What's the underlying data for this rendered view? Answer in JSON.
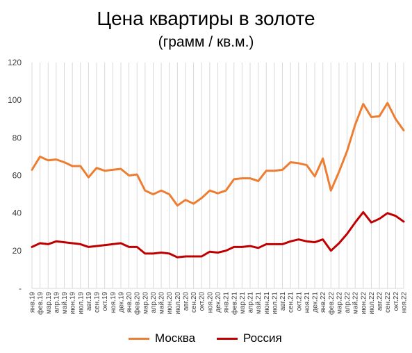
{
  "title": "Цена квартиры в золоте",
  "subtitle": "(грамм / кв.м.)",
  "chart_data": {
    "type": "line",
    "title": "Цена квартиры в золоте",
    "subtitle": "(грамм / кв.м.)",
    "xlabel": "",
    "ylabel": "",
    "ylim": [
      0,
      120
    ],
    "yticks": [
      "-",
      "20",
      "40",
      "60",
      "80",
      "100",
      "120"
    ],
    "grid": "vertical",
    "legend": "bottom",
    "categories": [
      "янв.19",
      "фев.19",
      "мар.19",
      "апр.19",
      "май.19",
      "июн.19",
      "июл.19",
      "авг.19",
      "сен.19",
      "окт.19",
      "ноя.19",
      "дек.19",
      "янв.20",
      "фев.20",
      "мар.20",
      "апр.20",
      "май.20",
      "июн.20",
      "июл.20",
      "авг.20",
      "сен.20",
      "окт.20",
      "ноя.20",
      "дек.20",
      "янв.21",
      "фев.21",
      "мар.21",
      "апр.21",
      "май.21",
      "июн.21",
      "июл.21",
      "авг.21",
      "сен.21",
      "окт.21",
      "ноя.21",
      "дек.21",
      "янв.22",
      "фев.22",
      "мар.22",
      "апр.22",
      "май.22",
      "июн.22",
      "июл.22",
      "авг.22",
      "сен.22",
      "окт.22",
      "ноя.22"
    ],
    "series": [
      {
        "name": "Москва",
        "color": "#ED7D31",
        "values": [
          63,
          70,
          68,
          68.5,
          67,
          65,
          65,
          59,
          64,
          62.5,
          63,
          63.5,
          60,
          60.5,
          52,
          50,
          52,
          50,
          44,
          47,
          45,
          48,
          52,
          50.5,
          52,
          58,
          58.5,
          58.5,
          57,
          62.5,
          62.5,
          63,
          67,
          66.5,
          65.5,
          59.5,
          69,
          52,
          62,
          73,
          87,
          98,
          91,
          91.5,
          98.5,
          90,
          84
        ]
      },
      {
        "name": "Россия",
        "color": "#C00000",
        "values": [
          22,
          24,
          23.5,
          25,
          24.5,
          24,
          23.5,
          22,
          22.5,
          23,
          23.5,
          24,
          22,
          22,
          18.5,
          18.5,
          19,
          18.5,
          16.5,
          17,
          17,
          17,
          19.5,
          19,
          20,
          22,
          22,
          22.5,
          21.5,
          23.5,
          23.5,
          23.5,
          25,
          26,
          25,
          24.5,
          26,
          20,
          24,
          29,
          35,
          40.5,
          35,
          37,
          40,
          38.5,
          35.5
        ]
      }
    ]
  }
}
